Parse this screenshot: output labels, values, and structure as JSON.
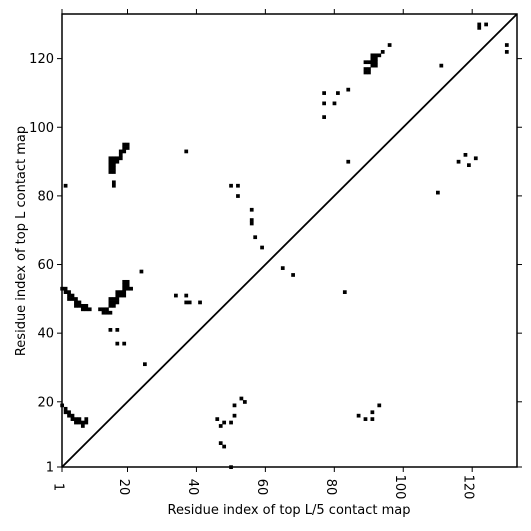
{
  "chart_data": {
    "type": "scatter",
    "title": "",
    "xlabel": "Residue index of top L/5 contact map",
    "ylabel": "Residue index of top L contact map",
    "xlim": [
      1,
      133
    ],
    "ylim": [
      1,
      133
    ],
    "xticks": [
      1,
      20,
      40,
      60,
      80,
      100,
      120
    ],
    "yticks": [
      1,
      20,
      40,
      60,
      80,
      100,
      120
    ],
    "xtick_labels": [
      "1",
      "20",
      "40",
      "60",
      "80",
      "100",
      "120"
    ],
    "ytick_labels": [
      "1",
      "20",
      "40",
      "60",
      "80",
      "100",
      "120"
    ],
    "grid": false,
    "diagonal": true,
    "marker": "square",
    "color": "#000000",
    "series": [
      {
        "name": "",
        "points": [
          [
            37,
            93
          ],
          [
            2,
            83
          ],
          [
            50,
            83
          ],
          [
            52,
            83
          ],
          [
            52,
            80
          ],
          [
            56,
            76
          ],
          [
            56,
            73
          ],
          [
            56,
            72
          ],
          [
            57,
            68
          ],
          [
            59,
            65
          ],
          [
            25,
            31
          ],
          [
            24,
            58
          ],
          [
            34,
            51
          ],
          [
            37,
            51
          ],
          [
            37,
            49
          ],
          [
            38,
            49
          ],
          [
            41,
            49
          ],
          [
            15,
            41
          ],
          [
            17,
            41
          ],
          [
            17,
            37
          ],
          [
            19,
            37
          ],
          [
            65,
            59
          ],
          [
            68,
            57
          ],
          [
            83,
            52
          ],
          [
            15,
            88
          ],
          [
            16,
            88
          ],
          [
            15,
            87
          ],
          [
            16,
            87
          ],
          [
            15,
            89
          ],
          [
            16,
            89
          ],
          [
            15,
            90
          ],
          [
            16,
            90
          ],
          [
            17,
            90
          ],
          [
            15,
            91
          ],
          [
            16,
            91
          ],
          [
            17,
            91
          ],
          [
            18,
            91
          ],
          [
            18,
            92
          ],
          [
            18,
            93
          ],
          [
            19,
            93
          ],
          [
            19,
            94
          ],
          [
            20,
            94
          ],
          [
            19,
            95
          ],
          [
            20,
            95
          ],
          [
            16,
            84
          ],
          [
            16,
            83
          ],
          [
            1,
            53
          ],
          [
            2,
            53
          ],
          [
            2,
            52
          ],
          [
            3,
            52
          ],
          [
            3,
            51
          ],
          [
            4,
            51
          ],
          [
            3,
            50
          ],
          [
            4,
            50
          ],
          [
            5,
            50
          ],
          [
            5,
            49
          ],
          [
            6,
            49
          ],
          [
            5,
            48
          ],
          [
            6,
            48
          ],
          [
            7,
            48
          ],
          [
            8,
            48
          ],
          [
            7,
            47
          ],
          [
            8,
            47
          ],
          [
            9,
            47
          ],
          [
            12,
            47
          ],
          [
            13,
            47
          ],
          [
            14,
            47
          ],
          [
            13,
            46
          ],
          [
            14,
            46
          ],
          [
            15,
            46
          ],
          [
            15,
            48
          ],
          [
            16,
            48
          ],
          [
            15,
            49
          ],
          [
            16,
            49
          ],
          [
            17,
            49
          ],
          [
            15,
            50
          ],
          [
            16,
            50
          ],
          [
            17,
            50
          ],
          [
            17,
            51
          ],
          [
            18,
            51
          ],
          [
            19,
            51
          ],
          [
            17,
            52
          ],
          [
            18,
            52
          ],
          [
            19,
            52
          ],
          [
            19,
            53
          ],
          [
            20,
            53
          ],
          [
            21,
            53
          ],
          [
            19,
            54
          ],
          [
            20,
            54
          ],
          [
            19,
            55
          ],
          [
            20,
            55
          ],
          [
            1,
            19
          ],
          [
            2,
            18
          ],
          [
            2,
            17
          ],
          [
            3,
            17
          ],
          [
            3,
            16
          ],
          [
            4,
            16
          ],
          [
            4,
            15
          ],
          [
            5,
            15
          ],
          [
            5,
            14
          ],
          [
            6,
            14
          ],
          [
            6,
            15
          ],
          [
            7,
            14
          ],
          [
            8,
            14
          ],
          [
            8,
            15
          ],
          [
            7,
            13
          ],
          [
            50,
            1
          ],
          [
            47,
            8
          ],
          [
            48,
            7
          ],
          [
            47,
            13
          ],
          [
            48,
            14
          ],
          [
            50,
            14
          ],
          [
            46,
            15
          ],
          [
            51,
            16
          ],
          [
            53,
            21
          ],
          [
            54,
            20
          ],
          [
            51,
            19
          ],
          [
            87,
            16
          ],
          [
            89,
            15
          ],
          [
            91,
            15
          ],
          [
            91,
            17
          ],
          [
            93,
            19
          ],
          [
            77,
            110
          ],
          [
            77,
            107
          ],
          [
            77,
            103
          ],
          [
            80,
            107
          ],
          [
            81,
            110
          ],
          [
            84,
            111
          ],
          [
            84,
            90
          ],
          [
            89,
            116
          ],
          [
            90,
            116
          ],
          [
            89,
            117
          ],
          [
            90,
            117
          ],
          [
            89,
            119
          ],
          [
            90,
            119
          ],
          [
            91,
            118
          ],
          [
            92,
            118
          ],
          [
            91,
            119
          ],
          [
            92,
            119
          ],
          [
            91,
            120
          ],
          [
            92,
            120
          ],
          [
            91,
            121
          ],
          [
            92,
            121
          ],
          [
            93,
            121
          ],
          [
            94,
            122
          ],
          [
            96,
            124
          ],
          [
            110,
            81
          ],
          [
            111,
            118
          ],
          [
            116,
            90
          ],
          [
            118,
            92
          ],
          [
            119,
            89
          ],
          [
            121,
            91
          ],
          [
            122,
            129
          ],
          [
            122,
            130
          ],
          [
            124,
            130
          ],
          [
            130,
            124
          ],
          [
            130,
            122
          ]
        ]
      }
    ]
  }
}
